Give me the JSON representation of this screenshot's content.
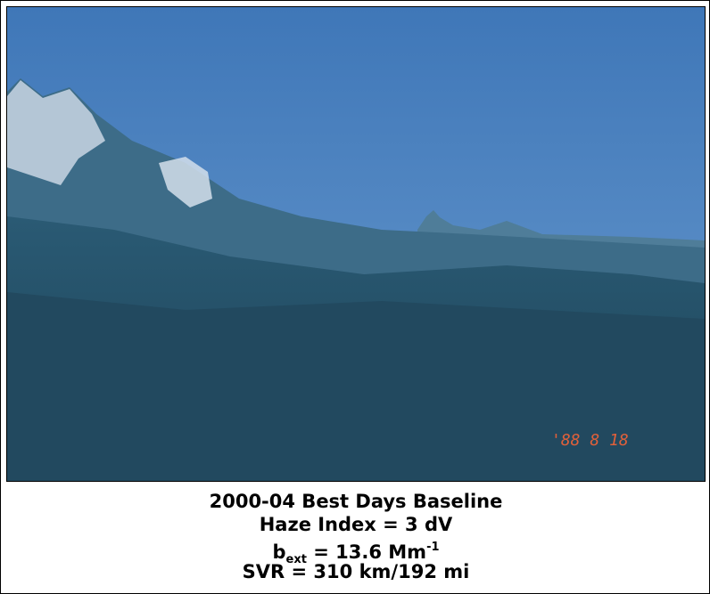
{
  "photo": {
    "timestamp": "'88  8 18"
  },
  "caption": {
    "line1": "2000-04 Best Days Baseline",
    "line2": "Haze Index = 3 dV",
    "line3": {
      "base": "b",
      "sub": "ext",
      "mid": " = 13.6 Mm",
      "sup": "-1"
    },
    "line4": "SVR = 310 km/192 mi"
  }
}
